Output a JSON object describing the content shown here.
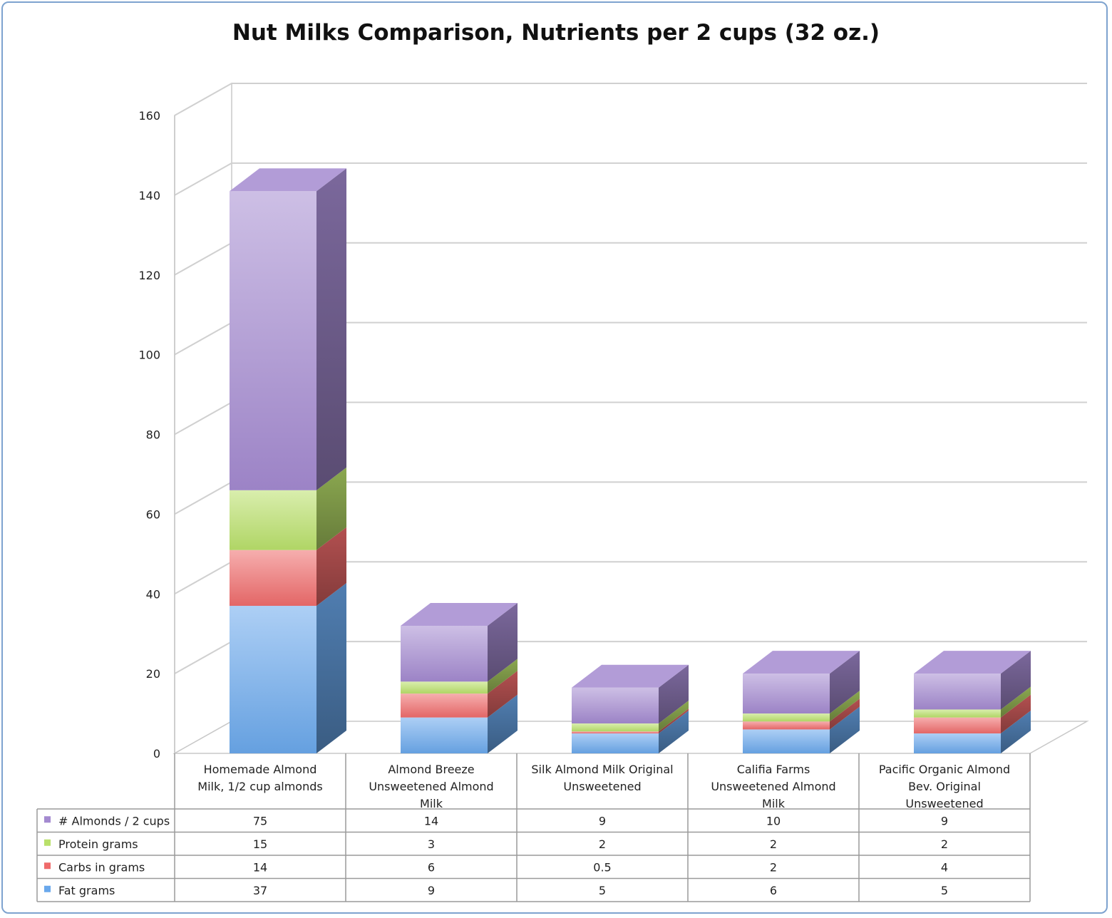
{
  "chart_data": {
    "type": "bar",
    "stacked": true,
    "three_d": true,
    "title": "Nut Milks Comparison, Nutrients per 2 cups (32 oz.)",
    "xlabel": "",
    "ylabel": "",
    "ylim": [
      0,
      160
    ],
    "yticks": [
      0,
      20,
      40,
      60,
      80,
      100,
      120,
      140,
      160
    ],
    "grid": true,
    "legend_placement": "data table",
    "categories": [
      [
        "Homemade Almond",
        "Milk, 1/2 cup almonds"
      ],
      [
        "Almond Breeze",
        "Unsweetened Almond",
        "Milk"
      ],
      [
        "Silk Almond Milk Original",
        "Unsweetened"
      ],
      [
        "Califia Farms",
        "Unsweetened Almond",
        "Milk"
      ],
      [
        "Pacific Organic Almond",
        "Bev. Original",
        "Unsweetened"
      ]
    ],
    "series": [
      {
        "name": "Fat grams",
        "values": [
          37,
          9,
          5,
          6,
          5
        ],
        "color": "#6aa8ec"
      },
      {
        "name": "Carbs in grams",
        "values": [
          14,
          6,
          0.5,
          2,
          4
        ],
        "color": "#ef6b6b"
      },
      {
        "name": "Protein grams",
        "values": [
          15,
          3,
          2,
          2,
          2
        ],
        "color": "#b9e06a"
      },
      {
        "name": "# Almonds / 2 cups",
        "values": [
          75,
          14,
          9,
          10,
          9
        ],
        "color": "#a48ad0"
      }
    ],
    "table_rows": [
      {
        "name": "# Almonds / 2 cups",
        "cells": [
          "75",
          "14",
          "9",
          "10",
          "9"
        ]
      },
      {
        "name": "Protein grams",
        "cells": [
          "15",
          "3",
          "2",
          "2",
          "2"
        ]
      },
      {
        "name": "Carbs in grams",
        "cells": [
          "14",
          "6",
          "0.5",
          "2",
          "4"
        ]
      },
      {
        "name": "Fat grams",
        "cells": [
          "37",
          "9",
          "5",
          "6",
          "5"
        ]
      }
    ]
  }
}
